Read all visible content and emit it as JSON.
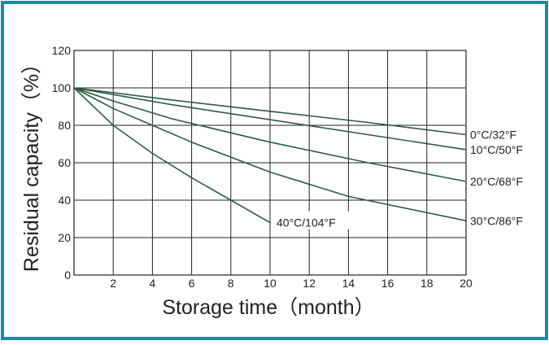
{
  "colors": {
    "frame": "#1c8aa4",
    "grid": "#222222",
    "curve": "#2f5a44",
    "text": "#222222"
  },
  "chart_data": {
    "type": "line",
    "title": "",
    "xlabel": "Storage time（month）",
    "ylabel": "Residual capacity（%）",
    "xlim": [
      0,
      20
    ],
    "ylim": [
      0,
      120
    ],
    "x_ticks": [
      "2",
      "4",
      "6",
      "8",
      "10",
      "12",
      "14",
      "16",
      "18",
      "20"
    ],
    "y_ticks": [
      "0",
      "20",
      "40",
      "60",
      "80",
      "100",
      "120"
    ],
    "grid": true,
    "legend": "inline labels at curve ends",
    "series": [
      {
        "name": "0°C/32°F",
        "x": [
          0,
          5,
          10,
          15,
          20
        ],
        "y": [
          100,
          93.5,
          87.5,
          81.5,
          75
        ]
      },
      {
        "name": "10°C/50°F",
        "x": [
          0,
          5,
          10,
          15,
          20
        ],
        "y": [
          100,
          91,
          83,
          75,
          67
        ]
      },
      {
        "name": "20°C/68°F",
        "x": [
          0,
          2,
          5,
          10,
          15,
          20
        ],
        "y": [
          100,
          93,
          83.5,
          71,
          60,
          50
        ]
      },
      {
        "name": "30°C/86°F",
        "x": [
          0,
          2,
          4,
          6,
          8,
          10,
          14,
          20
        ],
        "y": [
          100,
          89,
          80,
          71,
          63,
          55,
          42,
          29
        ]
      },
      {
        "name": "40°C/104°F",
        "x": [
          0,
          2,
          4,
          6,
          8,
          10
        ],
        "y": [
          100,
          80,
          65,
          52,
          40,
          28
        ]
      }
    ]
  }
}
